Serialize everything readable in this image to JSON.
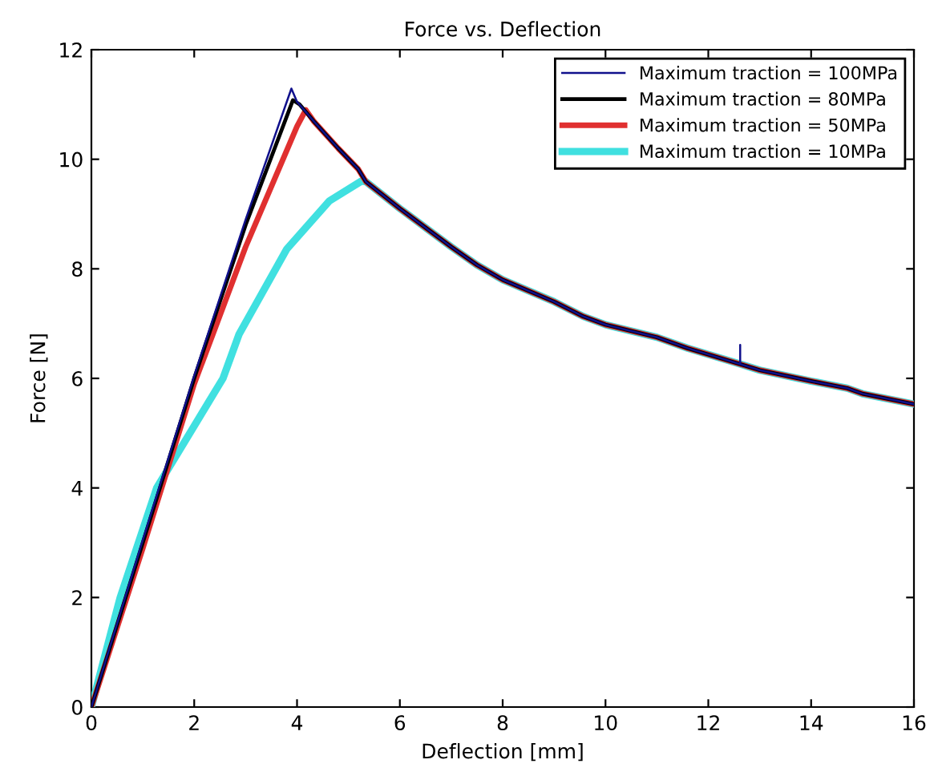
{
  "chart_data": {
    "type": "line",
    "title": "Force vs. Deflection",
    "xlabel": "Deflection [mm]",
    "ylabel": "Force [N]",
    "xlim": [
      0,
      16
    ],
    "ylim": [
      0,
      12
    ],
    "xticks": [
      0,
      2,
      4,
      6,
      8,
      10,
      12,
      14,
      16
    ],
    "yticks": [
      0,
      2,
      4,
      6,
      8,
      10,
      12
    ],
    "grid": false,
    "legend": "top right",
    "marker": "none",
    "line_style": "solid",
    "series": [
      {
        "name": "Maximum traction = 100MPa",
        "color": "#10108c",
        "x": [
          0,
          1,
          2,
          3,
          3.89,
          4.0,
          4.32,
          4.8,
          5.19,
          5.34,
          6,
          7,
          7.5,
          8,
          9,
          9.57,
          10,
          11,
          11.6,
          12.62,
          12.62,
          12.62,
          13,
          14,
          14.7,
          15,
          16
        ],
        "values": [
          0,
          3.05,
          6.05,
          8.9,
          11.29,
          11.05,
          10.7,
          10.2,
          9.82,
          9.59,
          9.1,
          8.4,
          8.07,
          7.8,
          7.4,
          7.13,
          6.98,
          6.75,
          6.55,
          6.26,
          6.61,
          6.26,
          6.15,
          5.95,
          5.82,
          5.72,
          5.53
        ]
      },
      {
        "name": "Maximum traction = 80MPa",
        "color": "#000000",
        "x": [
          0,
          1,
          2,
          3,
          3.92,
          4.05,
          4.32,
          4.8,
          5.19,
          5.34,
          6,
          7,
          7.5,
          8,
          9,
          9.57,
          10,
          11,
          11.6,
          12.62,
          13,
          14,
          14.7,
          15,
          16
        ],
        "values": [
          0,
          3.0,
          6.0,
          8.8,
          11.08,
          11.0,
          10.7,
          10.2,
          9.82,
          9.59,
          9.1,
          8.4,
          8.07,
          7.8,
          7.4,
          7.13,
          6.98,
          6.75,
          6.55,
          6.26,
          6.15,
          5.95,
          5.82,
          5.72,
          5.53
        ]
      },
      {
        "name": "Maximum traction = 50MPa",
        "color": "#e03030",
        "x": [
          0,
          1,
          2,
          3,
          4,
          4.17,
          4.32,
          4.8,
          5.19,
          5.34,
          6,
          7,
          7.5,
          8,
          9,
          9.57,
          10,
          11,
          11.6,
          12.62,
          13,
          14,
          14.7,
          15,
          16
        ],
        "values": [
          0,
          2.9,
          5.9,
          8.4,
          10.6,
          10.9,
          10.7,
          10.2,
          9.82,
          9.59,
          9.1,
          8.4,
          8.07,
          7.8,
          7.4,
          7.13,
          6.98,
          6.75,
          6.55,
          6.26,
          6.15,
          5.95,
          5.82,
          5.72,
          5.53
        ]
      },
      {
        "name": "Maximum traction = 10MPa",
        "color": "#40e0e0",
        "x": [
          0,
          0.56,
          1.27,
          2.56,
          2.87,
          3.8,
          4.63,
          5.25,
          5.34,
          6,
          7,
          7.5,
          8,
          9,
          9.57,
          10,
          11,
          11.6,
          12.62,
          13,
          14,
          14.7,
          15,
          16
        ],
        "values": [
          0,
          2,
          4,
          6,
          6.8,
          8.36,
          9.24,
          9.6,
          9.59,
          9.1,
          8.4,
          8.07,
          7.8,
          7.4,
          7.13,
          6.98,
          6.75,
          6.55,
          6.26,
          6.15,
          5.95,
          5.82,
          5.72,
          5.53
        ]
      }
    ]
  }
}
